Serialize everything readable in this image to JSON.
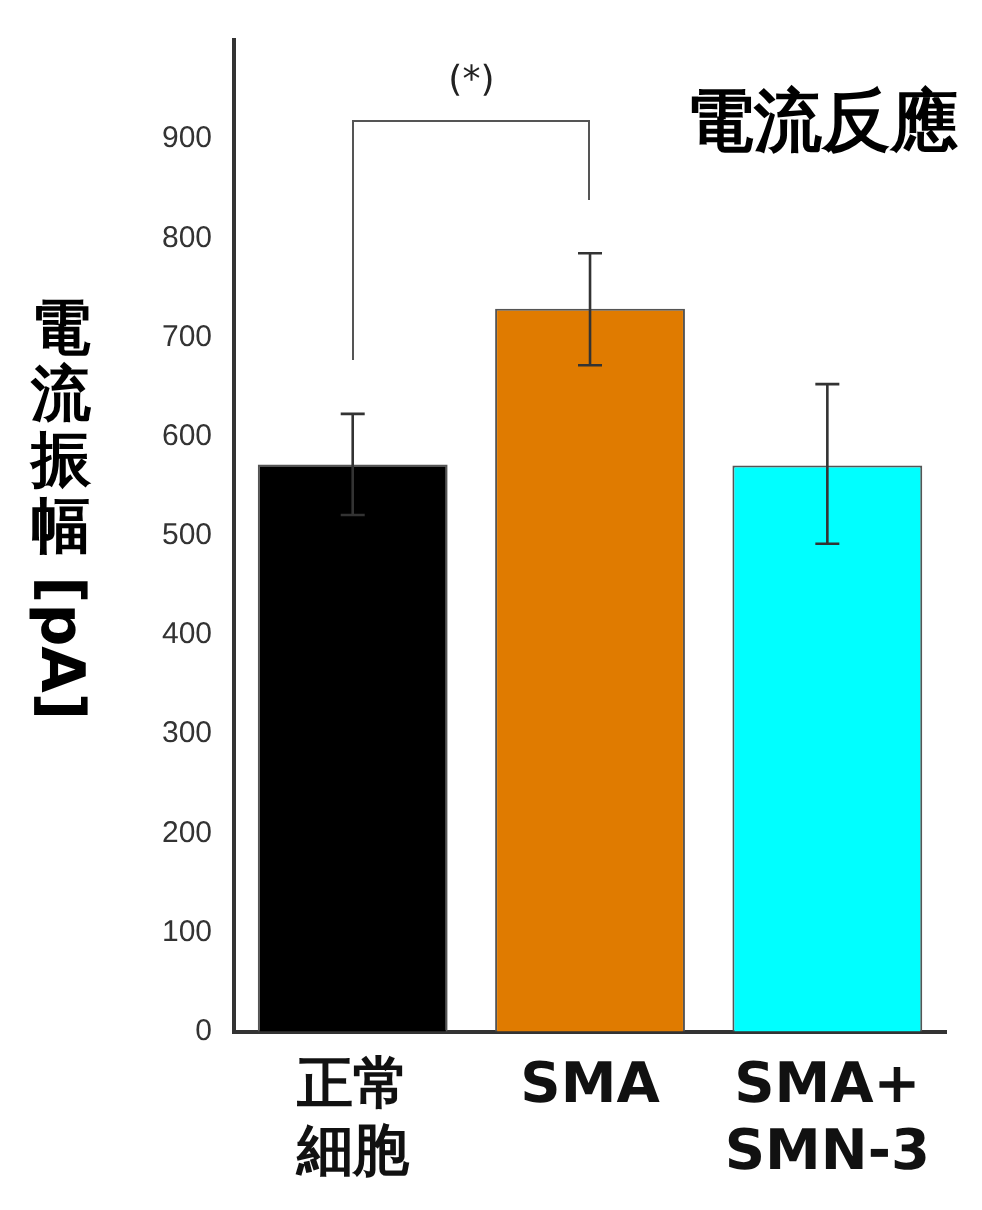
{
  "chart_data": {
    "type": "bar",
    "title": "電流反應",
    "ylabel": "電流振幅 [pA]",
    "categories": [
      "正常細胞",
      "SMA",
      "SMA+ SMN-3"
    ],
    "values": [
      572,
      729,
      571
    ],
    "colors": [
      "#000000",
      "#e07b00",
      "#00ffff"
    ],
    "errors": [
      [
        521,
        623
      ],
      [
        672,
        785
      ],
      [
        492,
        653
      ]
    ],
    "annotations": [
      "(*)"
    ],
    "ylim": [
      0,
      1000
    ],
    "yticks": [
      0,
      100,
      200,
      300,
      400,
      500,
      600,
      700,
      800,
      900
    ],
    "grid": false,
    "legend": false
  }
}
